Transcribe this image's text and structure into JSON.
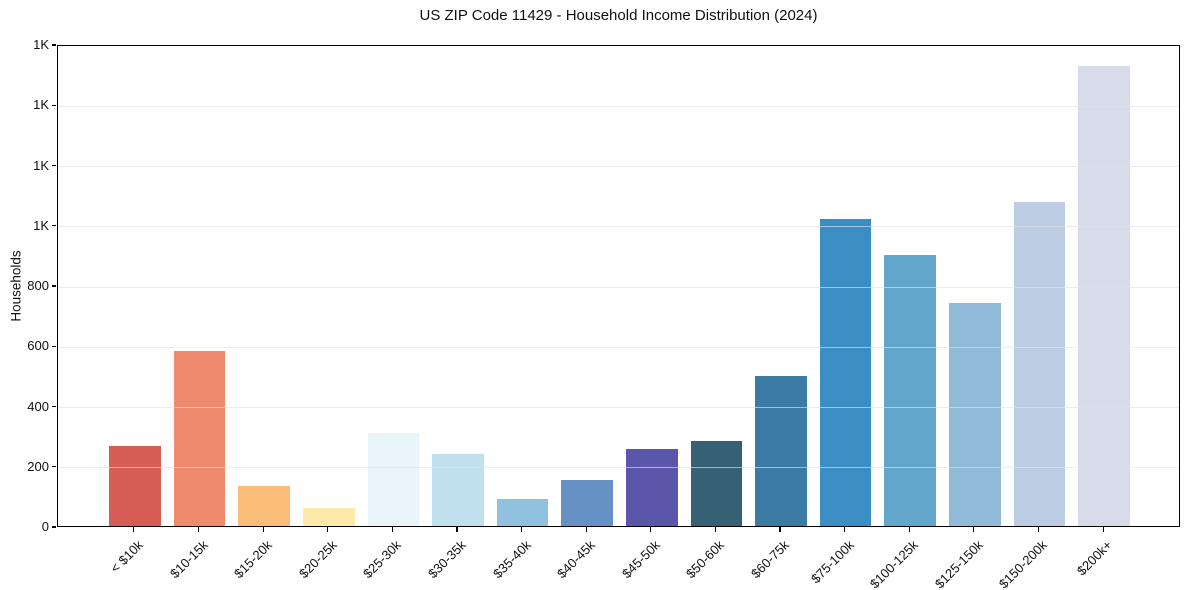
{
  "chart_data": {
    "type": "bar",
    "title": "US ZIP Code 11429 - Household Income Distribution (2024)",
    "xlabel": "",
    "ylabel": "Households",
    "ylim": [
      0,
      1600
    ],
    "ytick_interval": 200,
    "ytick_labels": [
      "0",
      "200",
      "400",
      "600",
      "800",
      "1K",
      "1K",
      "1K",
      "1K"
    ],
    "grid": "horizontal",
    "legend": "none",
    "categories": [
      "< $10k",
      "$10-15k",
      "$15-20k",
      "$20-25k",
      "$25-30k",
      "$30-35k",
      "$35-40k",
      "$40-45k",
      "$45-50k",
      "$50-60k",
      "$60-75k",
      "$75-100k",
      "$100-125k",
      "$125-150k",
      "$150-200k",
      "$200k+"
    ],
    "values": [
      267,
      580,
      134,
      60,
      310,
      238,
      90,
      154,
      256,
      283,
      498,
      1020,
      898,
      741,
      1075,
      1526
    ],
    "bar_colors": [
      "#d65c54",
      "#f08a6c",
      "#fbbe78",
      "#fdeaa8",
      "#eaf5f9",
      "#c0e0ee",
      "#90c1df",
      "#6591c5",
      "#5a56a9",
      "#366174",
      "#3a7aa3",
      "#3b8ec4",
      "#62a7cb",
      "#91b9d8",
      "#bccde3",
      "#d8dbe9"
    ],
    "axis_color": "#000000",
    "grid_color": "#e9e9e9",
    "background_color": "#ffffff"
  }
}
